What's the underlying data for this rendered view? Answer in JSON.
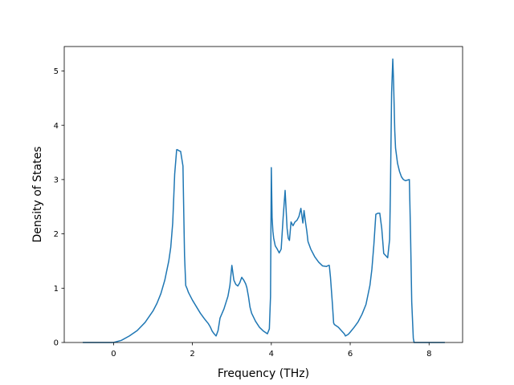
{
  "chart_data": {
    "type": "line",
    "xlabel": "Frequency (THz)",
    "ylabel": "Density of States",
    "xlim": [
      -1.25,
      8.85
    ],
    "ylim": [
      0,
      5.45
    ],
    "xticks": [
      0,
      2,
      4,
      6,
      8
    ],
    "yticks": [
      0,
      1,
      2,
      3,
      4,
      5
    ],
    "grid": false,
    "series": [
      {
        "color": "#1f77b4",
        "x": [
          -0.78,
          -0.6,
          -0.4,
          -0.2,
          0.0,
          0.2,
          0.4,
          0.6,
          0.8,
          1.0,
          1.1,
          1.2,
          1.3,
          1.4,
          1.45,
          1.5,
          1.55,
          1.6,
          1.62,
          1.66,
          1.7,
          1.76,
          1.78,
          1.8,
          1.83,
          1.86,
          1.9,
          2.0,
          2.1,
          2.2,
          2.3,
          2.4,
          2.45,
          2.5,
          2.55,
          2.6,
          2.65,
          2.7,
          2.8,
          2.9,
          2.95,
          3.0,
          3.05,
          3.1,
          3.15,
          3.2,
          3.25,
          3.3,
          3.35,
          3.38,
          3.42,
          3.46,
          3.5,
          3.6,
          3.7,
          3.8,
          3.9,
          3.95,
          3.98,
          4.0,
          4.02,
          4.04,
          4.06,
          4.1,
          4.15,
          4.2,
          4.25,
          4.3,
          4.35,
          4.4,
          4.43,
          4.46,
          4.5,
          4.55,
          4.6,
          4.65,
          4.7,
          4.75,
          4.8,
          4.83,
          4.87,
          4.9,
          4.93,
          5.0,
          5.1,
          5.2,
          5.3,
          5.4,
          5.45,
          5.47,
          5.5,
          5.55,
          5.58,
          5.6,
          5.7,
          5.8,
          5.85,
          5.88,
          5.95,
          6.0,
          6.1,
          6.2,
          6.3,
          6.4,
          6.5,
          6.55,
          6.6,
          6.65,
          6.7,
          6.75,
          6.8,
          6.85,
          6.9,
          6.95,
          7.0,
          7.02,
          7.05,
          7.08,
          7.1,
          7.13,
          7.15,
          7.2,
          7.25,
          7.3,
          7.35,
          7.4,
          7.5,
          7.53,
          7.56,
          7.6,
          7.62,
          7.65,
          7.8,
          8.0,
          8.2,
          8.4
        ],
        "y": [
          0,
          0,
          0,
          0,
          0,
          0.04,
          0.12,
          0.22,
          0.37,
          0.58,
          0.72,
          0.9,
          1.15,
          1.5,
          1.75,
          2.2,
          3.1,
          3.55,
          3.55,
          3.53,
          3.52,
          3.25,
          2.4,
          1.6,
          1.05,
          1.0,
          0.92,
          0.78,
          0.66,
          0.54,
          0.44,
          0.35,
          0.29,
          0.21,
          0.16,
          0.12,
          0.22,
          0.45,
          0.62,
          0.85,
          1.05,
          1.42,
          1.15,
          1.07,
          1.04,
          1.1,
          1.2,
          1.15,
          1.08,
          1.01,
          0.85,
          0.65,
          0.54,
          0.39,
          0.28,
          0.21,
          0.16,
          0.25,
          0.85,
          3.22,
          2.3,
          2.05,
          1.92,
          1.78,
          1.72,
          1.65,
          1.72,
          2.3,
          2.8,
          2.1,
          1.92,
          1.88,
          2.22,
          2.15,
          2.22,
          2.25,
          2.32,
          2.47,
          2.2,
          2.43,
          2.2,
          2.05,
          1.86,
          1.72,
          1.58,
          1.48,
          1.41,
          1.4,
          1.42,
          1.42,
          1.2,
          0.7,
          0.36,
          0.33,
          0.28,
          0.2,
          0.16,
          0.12,
          0.15,
          0.19,
          0.28,
          0.38,
          0.52,
          0.7,
          1.05,
          1.35,
          1.8,
          2.36,
          2.38,
          2.38,
          2.1,
          1.64,
          1.6,
          1.56,
          1.9,
          2.8,
          4.6,
          5.22,
          4.8,
          3.9,
          3.58,
          3.3,
          3.15,
          3.05,
          3.0,
          2.98,
          3.0,
          2.0,
          0.75,
          0.08,
          0,
          0,
          0,
          0,
          0,
          0
        ]
      }
    ]
  }
}
